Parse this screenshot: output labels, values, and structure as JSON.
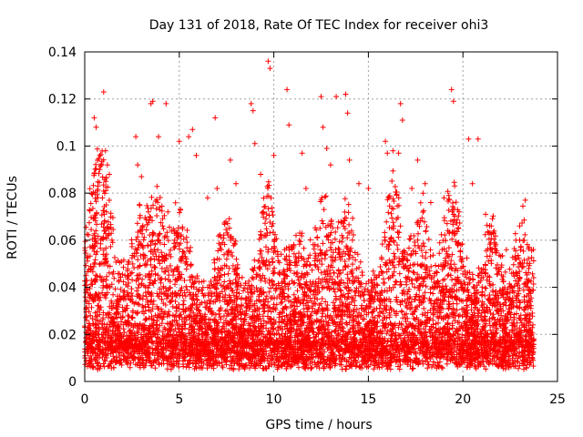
{
  "chart_data": {
    "type": "scatter",
    "title": "Day 131 of 2018, Rate Of TEC Index for receiver ohi3",
    "xlabel": "GPS time / hours",
    "ylabel": "ROTI / TECUs",
    "xlim": [
      0,
      25
    ],
    "ylim": [
      0,
      0.14
    ],
    "xticks": [
      0,
      5,
      10,
      15,
      20,
      25
    ],
    "xtick_labels": [
      "0",
      "5",
      "10",
      "15",
      "20",
      "25"
    ],
    "yticks": [
      0,
      0.02,
      0.04,
      0.06,
      0.08,
      0.1,
      0.12,
      0.14
    ],
    "ytick_labels": [
      "0",
      "0.02",
      "0.04",
      "0.06",
      "0.08",
      "0.1",
      "0.12",
      "0.14"
    ],
    "grid": true,
    "marker": "+",
    "color": "#ff0000",
    "series": [
      {
        "name": "ROTI",
        "points": [
          [
            0.3,
            0.028
          ],
          [
            0.5,
            0.112
          ],
          [
            0.6,
            0.108
          ],
          [
            0.7,
            0.083
          ],
          [
            1.0,
            0.123
          ],
          [
            1.1,
            0.098
          ],
          [
            1.2,
            0.092
          ],
          [
            1.3,
            0.088
          ],
          [
            2.7,
            0.104
          ],
          [
            2.8,
            0.092
          ],
          [
            3.0,
            0.087
          ],
          [
            3.5,
            0.118
          ],
          [
            3.6,
            0.119
          ],
          [
            3.9,
            0.104
          ],
          [
            4.3,
            0.118
          ],
          [
            4.4,
            0.072
          ],
          [
            5.0,
            0.102
          ],
          [
            5.5,
            0.104
          ],
          [
            5.7,
            0.107
          ],
          [
            5.9,
            0.096
          ],
          [
            6.9,
            0.112
          ],
          [
            6.5,
            0.078
          ],
          [
            7.0,
            0.082
          ],
          [
            7.7,
            0.094
          ],
          [
            8.0,
            0.084
          ],
          [
            9.0,
            0.101
          ],
          [
            9.3,
            0.088
          ],
          [
            8.8,
            0.118
          ],
          [
            8.9,
            0.115
          ],
          [
            9.7,
            0.136
          ],
          [
            9.8,
            0.133
          ],
          [
            10.0,
            0.096
          ],
          [
            10.7,
            0.124
          ],
          [
            10.8,
            0.109
          ],
          [
            11.5,
            0.097
          ],
          [
            11.7,
            0.082
          ],
          [
            12.5,
            0.121
          ],
          [
            12.6,
            0.108
          ],
          [
            12.8,
            0.099
          ],
          [
            13.0,
            0.092
          ],
          [
            13.3,
            0.121
          ],
          [
            13.8,
            0.122
          ],
          [
            13.9,
            0.114
          ],
          [
            14.0,
            0.094
          ],
          [
            14.5,
            0.084
          ],
          [
            15.0,
            0.082
          ],
          [
            15.9,
            0.102
          ],
          [
            16.0,
            0.097
          ],
          [
            16.3,
            0.098
          ],
          [
            16.6,
            0.097
          ],
          [
            16.7,
            0.118
          ],
          [
            16.8,
            0.111
          ],
          [
            17.3,
            0.082
          ],
          [
            17.6,
            0.094
          ],
          [
            18.0,
            0.084
          ],
          [
            18.3,
            0.076
          ],
          [
            19.0,
            0.078
          ],
          [
            19.4,
            0.124
          ],
          [
            19.5,
            0.119
          ],
          [
            19.8,
            0.072
          ],
          [
            20.3,
            0.103
          ],
          [
            20.8,
            0.103
          ],
          [
            20.5,
            0.084
          ],
          [
            21.2,
            0.071
          ],
          [
            21.5,
            0.066
          ],
          [
            22.3,
            0.056
          ],
          [
            22.8,
            0.06
          ],
          [
            23.0,
            0.066
          ],
          [
            23.3,
            0.077
          ],
          [
            23.5,
            0.057
          ],
          [
            23.7,
            0.024
          ]
        ]
      }
    ]
  }
}
